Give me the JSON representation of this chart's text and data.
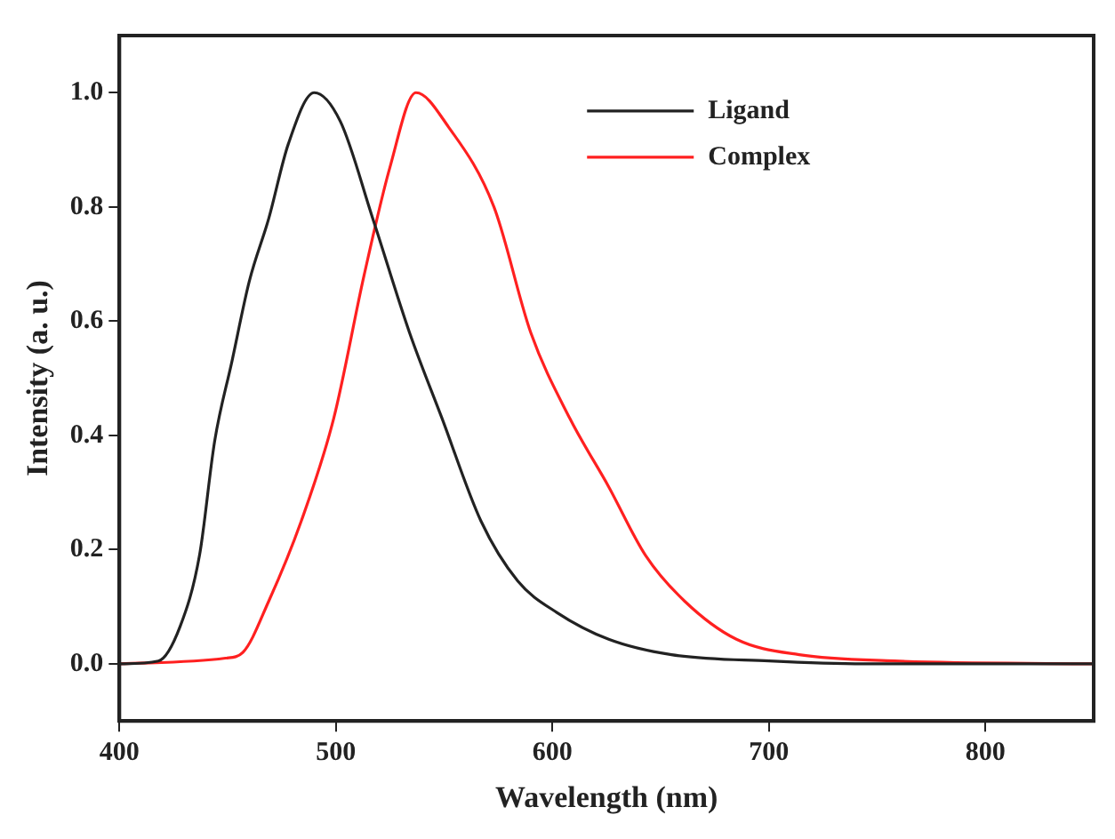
{
  "chart_data": {
    "type": "line",
    "xlabel": "Wavelength (nm)",
    "ylabel": "Intensity (a. u.)",
    "xlim": [
      400,
      850
    ],
    "ylim": [
      -0.1,
      1.1
    ],
    "xticks": [
      400,
      500,
      600,
      700,
      800
    ],
    "yticks": [
      {
        "value": 0,
        "label": "0.0"
      },
      0.2,
      0.4,
      0.6,
      0.8,
      {
        "value": 1,
        "label": "1.0"
      }
    ],
    "grid": false,
    "legend": "top right",
    "marker": "none",
    "line_style": "solid",
    "series": [
      {
        "name": "Ligand",
        "color": "#222222",
        "x": [
          400,
          418,
          428,
          437,
          444,
          452,
          460,
          469,
          478,
          490,
          502,
          517,
          534,
          549,
          567,
          584,
          602,
          626,
          655,
          700,
          744,
          850
        ],
        "values": [
          0,
          0.005,
          0.065,
          0.19,
          0.39,
          0.53,
          0.67,
          0.78,
          0.91,
          1.0,
          0.95,
          0.78,
          0.58,
          0.43,
          0.25,
          0.145,
          0.09,
          0.043,
          0.016,
          0.005,
          0,
          0
        ]
      },
      {
        "name": "Complex",
        "color": "#ff2020",
        "x": [
          400,
          449,
          457,
          469,
          484,
          499,
          513,
          525,
          537,
          552,
          573,
          590,
          608,
          626,
          643,
          661,
          685,
          714,
          758,
          850
        ],
        "values": [
          0,
          0.01,
          0.02,
          0.11,
          0.25,
          0.43,
          0.68,
          0.87,
          1.0,
          0.94,
          0.8,
          0.58,
          0.43,
          0.31,
          0.19,
          0.11,
          0.043,
          0.016,
          0.005,
          0
        ]
      }
    ]
  }
}
